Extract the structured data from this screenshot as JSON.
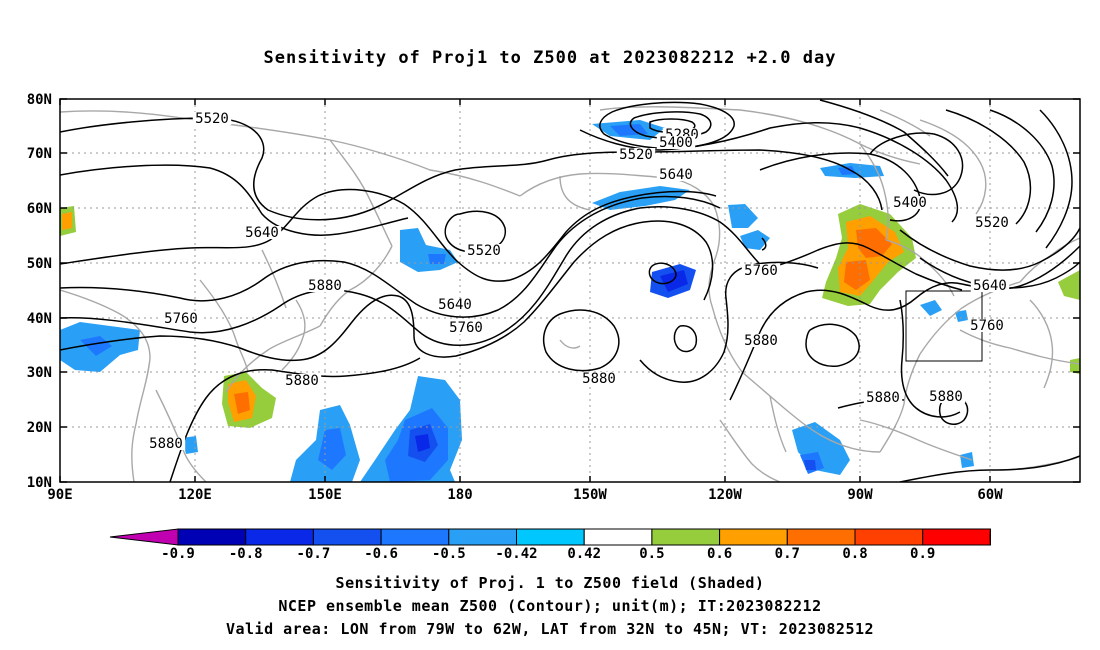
{
  "title": "Sensitivity of Proj1 to Z500 at 2023082212 +2.0 day",
  "map": {
    "lat_labels": [
      "80N",
      "70N",
      "60N",
      "50N",
      "40N",
      "30N",
      "20N",
      "10N"
    ],
    "lon_labels": [
      "90E",
      "120E",
      "150E",
      "180",
      "150W",
      "120W",
      "90W",
      "60W"
    ],
    "contour_labels": [
      {
        "text": "5520"
      },
      {
        "text": "5280"
      },
      {
        "text": "5400"
      },
      {
        "text": "5520"
      },
      {
        "text": "5640"
      },
      {
        "text": "5400"
      },
      {
        "text": "5520"
      },
      {
        "text": "5640"
      },
      {
        "text": "5520"
      },
      {
        "text": "5760"
      },
      {
        "text": "5880"
      },
      {
        "text": "5640"
      },
      {
        "text": "5760"
      },
      {
        "text": "5760"
      },
      {
        "text": "5880"
      },
      {
        "text": "5880"
      },
      {
        "text": "5880"
      },
      {
        "text": "5640"
      },
      {
        "text": "5760"
      },
      {
        "text": "5880"
      },
      {
        "text": "5880"
      },
      {
        "text": "5880"
      }
    ],
    "valid_area_box": {
      "lon_from": "79W",
      "lon_to": "62W",
      "lat_from": "32N",
      "lat_to": "45N"
    }
  },
  "colorbar": {
    "tick_labels": [
      "-0.9",
      "-0.8",
      "-0.7",
      "-0.6",
      "-0.5",
      "-0.42",
      "0.42",
      "0.5",
      "0.6",
      "0.7",
      "0.8",
      "0.9"
    ],
    "colors": [
      "#c000b0",
      "#0000b4",
      "#0a28e8",
      "#1450f0",
      "#1e78ff",
      "#29a0f5",
      "#00c8ff",
      "#ffffff",
      "#96cd3c",
      "#ffa000",
      "#ff6e00",
      "#ff4000",
      "#ff0000",
      "#ff96c8"
    ]
  },
  "caption": {
    "line1": "Sensitivity of Proj. 1 to Z500 field (Shaded)",
    "line2": "NCEP ensemble mean Z500 (Contour); unit(m); IT:2023082212",
    "line3": "Valid area: LON from 79W to 62W, LAT from 32N to 45N; VT: 2023082512"
  }
}
